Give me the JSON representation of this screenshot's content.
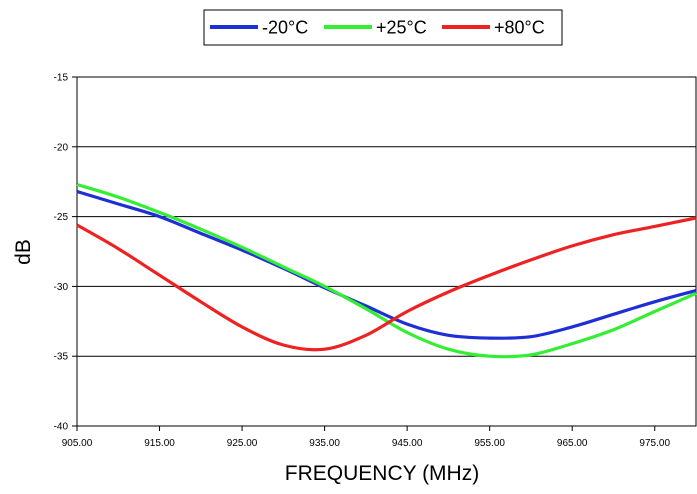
{
  "chart_data": {
    "type": "line",
    "title": "",
    "xlabel": "FREQUENCY (MHz)",
    "ylabel": "dB",
    "xlim": [
      905,
      980
    ],
    "ylim": [
      -40,
      -15
    ],
    "xticks": [
      905,
      915,
      925,
      935,
      945,
      955,
      965,
      975
    ],
    "xtick_labels": [
      "905.00",
      "915.00",
      "925.00",
      "935.00",
      "945.00",
      "955.00",
      "965.00",
      "975.00"
    ],
    "yticks": [
      -15,
      -20,
      -25,
      -30,
      -35,
      -40
    ],
    "ytick_labels": [
      "-15",
      "-20",
      "-25",
      "-30",
      "-35",
      "-40"
    ],
    "grid": "horizontal",
    "legend_position": "top-center",
    "series": [
      {
        "name": "-20°C",
        "color": "#1f2fd6",
        "x": [
          905,
          910,
          915,
          920,
          925,
          930,
          935,
          940,
          945,
          950,
          955,
          960,
          965,
          970,
          975,
          980
        ],
        "y": [
          -23.2,
          -24.1,
          -25.0,
          -26.2,
          -27.4,
          -28.7,
          -30.1,
          -31.4,
          -32.7,
          -33.5,
          -33.7,
          -33.6,
          -32.9,
          -32.0,
          -31.1,
          -30.3
        ]
      },
      {
        "name": "+25°C",
        "color": "#33ee33",
        "x": [
          905,
          910,
          915,
          920,
          925,
          930,
          935,
          940,
          945,
          950,
          955,
          960,
          965,
          970,
          975,
          980
        ],
        "y": [
          -22.7,
          -23.6,
          -24.7,
          -25.9,
          -27.2,
          -28.6,
          -30.0,
          -31.6,
          -33.3,
          -34.5,
          -35.0,
          -34.9,
          -34.1,
          -33.1,
          -31.8,
          -30.5
        ]
      },
      {
        "name": "+80°C",
        "color": "#ee2222",
        "x": [
          905,
          910,
          915,
          920,
          925,
          930,
          935,
          940,
          945,
          950,
          955,
          960,
          965,
          970,
          975,
          980
        ],
        "y": [
          -25.6,
          -27.3,
          -29.2,
          -31.1,
          -32.9,
          -34.2,
          -34.5,
          -33.5,
          -31.8,
          -30.4,
          -29.2,
          -28.1,
          -27.1,
          -26.3,
          -25.7,
          -25.1
        ]
      }
    ]
  }
}
